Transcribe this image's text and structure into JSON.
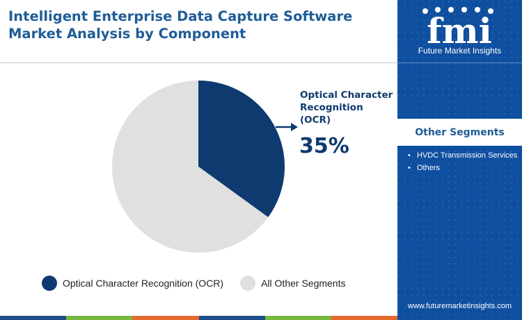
{
  "title": "Intelligent Enterprise Data Capture Software Market Analysis by Component",
  "chart_data": {
    "type": "pie",
    "slices": [
      {
        "label": "Optical Character Recognition (OCR)",
        "value": 35,
        "color": "#0e3a6f"
      },
      {
        "label": "All Other Segments",
        "value": 65,
        "color": "#e0e0e0"
      }
    ],
    "callout": {
      "label_lines": [
        "Optical Character",
        "Recognition",
        "(OCR)"
      ],
      "value": "35%"
    },
    "legend": [
      {
        "label": "Optical Character Recognition (OCR)",
        "color": "#0e3a6f"
      },
      {
        "label": "All Other Segments",
        "color": "#e0e0e0"
      }
    ]
  },
  "side_panel": {
    "logo_text": "fmi",
    "logo_caption": "Future Market Insights",
    "segments_title": "Other Segments",
    "segments": [
      "HVDC Transmission Services",
      "Others"
    ],
    "bullet": "•",
    "url": "www.futuremarketinsights.com",
    "colors": {
      "panel": "#0f4fa0"
    }
  },
  "bottom_bar_colors": [
    "#1d4e89",
    "#77b843",
    "#e56a2e",
    "#1d4e89",
    "#77b843",
    "#e56a2e"
  ]
}
